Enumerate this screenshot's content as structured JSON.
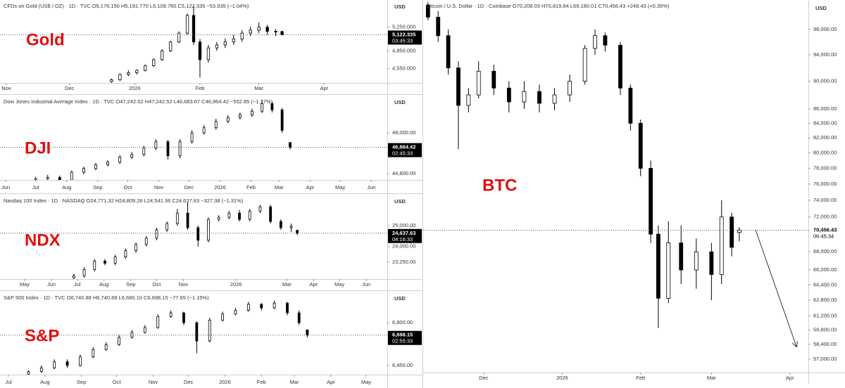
{
  "chart_data": [
    {
      "type": "candlestick",
      "title": "CFDs on Gold (US$ / OZ) · 1D · TVC  O5,176.150 H5,191.770 L5,109.760 C5,122.335 −53.935 (−1.04%)",
      "annotation": "Gold",
      "currency": "USD",
      "log": false,
      "grid": false,
      "up_color": "#ffffff",
      "down_color": "#000000",
      "x": [
        50,
        54,
        58,
        62,
        66,
        70,
        74,
        78,
        82,
        86,
        89,
        92,
        96,
        100,
        104,
        108,
        112,
        116,
        120,
        124,
        128,
        131
      ],
      "open": [
        4330,
        4360,
        4450,
        4480,
        4520,
        4600,
        4700,
        4850,
        5000,
        5150,
        5450,
        5000,
        4700,
        4900,
        4950,
        5000,
        5050,
        5150,
        5200,
        5250,
        5180,
        5176.15
      ],
      "high": [
        4380,
        4470,
        4520,
        4540,
        4620,
        4720,
        4880,
        5020,
        5180,
        5480,
        5600,
        5050,
        4950,
        5000,
        5060,
        5120,
        5200,
        5260,
        5330,
        5290,
        5220,
        5191.77
      ],
      "low": [
        4310,
        4340,
        4420,
        4450,
        4500,
        4580,
        4680,
        4830,
        4980,
        5120,
        4950,
        4400,
        4650,
        4850,
        4900,
        4950,
        5000,
        5100,
        5150,
        5120,
        5100,
        5109.76
      ],
      "close": [
        4360,
        4450,
        4480,
        4520,
        4600,
        4700,
        4850,
        5000,
        5150,
        5450,
        5000,
        4700,
        4900,
        4950,
        5000,
        5050,
        5150,
        5200,
        5250,
        5180,
        5176,
        5122.335
      ],
      "xlim": [
        -3,
        181
      ],
      "xticks": [
        {
          "value": 0,
          "label": "Nov"
        },
        {
          "value": 30,
          "label": "Dec"
        },
        {
          "value": 61,
          "label": "2026"
        },
        {
          "value": 92,
          "label": "Feb"
        },
        {
          "value": 120,
          "label": "Mar"
        },
        {
          "value": 151,
          "label": "Apr"
        }
      ],
      "ylim": [
        4307,
        5710
      ],
      "yticks": [
        {
          "value": 5250,
          "label": "5,250.000"
        },
        {
          "value": 4850,
          "label": "4,850.000"
        },
        {
          "value": 4550,
          "label": "4,550.000"
        }
      ],
      "last_price": {
        "value": 5122.335,
        "label": "5,122.335"
      },
      "countdown": "03:45:33"
    },
    {
      "type": "candlestick",
      "title": "Dow Jones Industrial Average Index · 1D · TVC  O47,242.52 H47,242.52 L46,683.67 C46,864.42 −552.85 (−1.17%)",
      "annotation": "DJI",
      "currency": "USD",
      "log": false,
      "grid": false,
      "up_color": "#ffffff",
      "down_color": "#000000",
      "x": [
        30,
        42,
        54,
        66,
        78,
        90,
        102,
        114,
        126,
        138,
        150,
        162,
        174,
        186,
        198,
        210,
        222,
        234,
        246,
        256,
        266,
        276,
        284
      ],
      "open": [
        44300,
        44400,
        44500,
        44300,
        44900,
        45200,
        45500,
        45700,
        46100,
        46300,
        46800,
        47300,
        46200,
        47300,
        48000,
        48400,
        48900,
        49200,
        49400,
        49700,
        50300,
        49800,
        47242.52
      ],
      "high": [
        44550,
        44700,
        44650,
        45050,
        45350,
        45650,
        45850,
        46250,
        46500,
        47000,
        47500,
        47450,
        47500,
        48200,
        48600,
        49100,
        49400,
        49600,
        49900,
        50600,
        50450,
        49950,
        47242.52
      ],
      "low": [
        44150,
        44250,
        44150,
        44200,
        44750,
        45050,
        45350,
        45550,
        45950,
        46150,
        46650,
        45900,
        46000,
        47150,
        47850,
        48250,
        48750,
        49050,
        49250,
        49550,
        49600,
        48000,
        46683.67
      ],
      "close": [
        44400,
        44500,
        44300,
        44900,
        45200,
        45500,
        45700,
        46100,
        46300,
        46800,
        47300,
        46200,
        47300,
        48000,
        48400,
        48900,
        49200,
        49400,
        49700,
        50300,
        49800,
        48200,
        46864.42
      ],
      "xlim": [
        -5.6,
        381
      ],
      "xticks": [
        {
          "value": 0,
          "label": "Jun"
        },
        {
          "value": 30,
          "label": "Jul"
        },
        {
          "value": 61,
          "label": "Aug"
        },
        {
          "value": 92,
          "label": "Sep"
        },
        {
          "value": 122,
          "label": "Oct"
        },
        {
          "value": 153,
          "label": "Nov"
        },
        {
          "value": 183,
          "label": "Dec"
        },
        {
          "value": 214,
          "label": "2026"
        },
        {
          "value": 245,
          "label": "Feb"
        },
        {
          "value": 273,
          "label": "Mar"
        },
        {
          "value": 304,
          "label": "Apr"
        },
        {
          "value": 334,
          "label": "May"
        },
        {
          "value": 365,
          "label": "Jun"
        }
      ],
      "ylim": [
        44303,
        50925
      ],
      "yticks": [
        {
          "value": 48000,
          "label": "48,000.00"
        },
        {
          "value": 44800,
          "label": "44,800.00"
        }
      ],
      "last_price": {
        "value": 46864.42,
        "label": "46,864.42"
      },
      "countdown": "02:45:33"
    },
    {
      "type": "candlestick",
      "title": "Nasdaq 100 Index · 1D · NASDAQ  O24,771.32 H24,809.26 L24,541.36 C24,637.63 −327.38 (−1.31%)",
      "annotation": "NDX",
      "currency": "USD",
      "log": false,
      "grid": false,
      "up_color": "#ffffff",
      "down_color": "#000000",
      "x": [
        57,
        69,
        81,
        93,
        105,
        117,
        129,
        141,
        153,
        165,
        177,
        189,
        201,
        213,
        225,
        237,
        249,
        261,
        273,
        285,
        297,
        309,
        316
      ],
      "open": [
        22500,
        22600,
        22900,
        23300,
        23200,
        23500,
        23800,
        24100,
        24400,
        24800,
        25100,
        25600,
        24900,
        24300,
        25300,
        25400,
        25600,
        25300,
        25700,
        25900,
        25200,
        24900,
        24771.32
      ],
      "high": [
        22700,
        23000,
        23400,
        23400,
        23600,
        23900,
        24200,
        24500,
        24900,
        25200,
        25800,
        26100,
        25000,
        25400,
        25500,
        25700,
        25750,
        25800,
        26000,
        26000,
        25300,
        25100,
        24809.26
      ],
      "low": [
        22400,
        22500,
        22800,
        23100,
        23100,
        23400,
        23700,
        24000,
        24300,
        24700,
        25000,
        24800,
        24000,
        24200,
        25200,
        25300,
        25200,
        25200,
        25600,
        25100,
        24800,
        24700,
        24541.36
      ],
      "close": [
        22600,
        22900,
        23300,
        23200,
        23500,
        23800,
        24100,
        24400,
        24800,
        25100,
        25600,
        24900,
        24300,
        25300,
        25400,
        25600,
        25300,
        25700,
        25900,
        25200,
        24900,
        24965,
        24637.63
      ],
      "xlim": [
        -28.6,
        420.4
      ],
      "xticks": [
        {
          "value": 0,
          "label": "May"
        },
        {
          "value": 31,
          "label": "Jun"
        },
        {
          "value": 61,
          "label": "Jul"
        },
        {
          "value": 92,
          "label": "Aug"
        },
        {
          "value": 123,
          "label": "Sep"
        },
        {
          "value": 153,
          "label": "Oct"
        },
        {
          "value": 184,
          "label": "Nov"
        },
        {
          "value": 245,
          "label": "2026"
        },
        {
          "value": 304,
          "label": "Mar"
        },
        {
          "value": 335,
          "label": "Apr"
        },
        {
          "value": 365,
          "label": "May"
        },
        {
          "value": 396,
          "label": "Jun"
        }
      ],
      "ylim": [
        22442,
        26481
      ],
      "yticks": [
        {
          "value": 25000,
          "label": "25,000.00"
        },
        {
          "value": 24000,
          "label": "24,000.00"
        },
        {
          "value": 23250,
          "label": "23,250.00"
        }
      ],
      "last_price": {
        "value": 24637.63,
        "label": "24,637.63"
      },
      "countdown": "04:16:33"
    },
    {
      "type": "candlestick",
      "title": "S&P 500 Index · 1D · TVC  O6,740.88 H6,740.88 L6,680.10 C6,698.15 −77.65 (−1.15%)",
      "annotation": "S&P",
      "currency": "USD",
      "log": false,
      "grid": false,
      "up_color": "#ffffff",
      "down_color": "#000000",
      "x": [
        17,
        28,
        39,
        50,
        61,
        72,
        83,
        94,
        105,
        116,
        127,
        138,
        149,
        160,
        171,
        182,
        193,
        204,
        215,
        226,
        237,
        247,
        254
      ],
      "open": [
        6380,
        6400,
        6430,
        6480,
        6450,
        6520,
        6580,
        6620,
        6680,
        6720,
        6760,
        6850,
        6880,
        6800,
        6650,
        6820,
        6870,
        6900,
        6950,
        6920,
        6960,
        6880,
        6740.88
      ],
      "high": [
        6410,
        6450,
        6500,
        6500,
        6540,
        6600,
        6640,
        6700,
        6740,
        6780,
        6870,
        6900,
        6890,
        6810,
        6840,
        6890,
        6920,
        6970,
        6960,
        6980,
        6970,
        6900,
        6740.88
      ],
      "low": [
        6370,
        6390,
        6420,
        6430,
        6440,
        6510,
        6570,
        6610,
        6670,
        6710,
        6750,
        6840,
        6780,
        6550,
        6640,
        6810,
        6860,
        6890,
        6900,
        6910,
        6860,
        6780,
        6680.1
      ],
      "close": [
        6400,
        6430,
        6480,
        6450,
        6520,
        6580,
        6620,
        6680,
        6720,
        6760,
        6850,
        6880,
        6800,
        6650,
        6820,
        6870,
        6900,
        6950,
        6920,
        6960,
        6880,
        6800,
        6698.15
      ],
      "xlim": [
        -7.2,
        322
      ],
      "xticks": [
        {
          "value": 0,
          "label": "Jul"
        },
        {
          "value": 31,
          "label": "Aug"
        },
        {
          "value": 62,
          "label": "Sep"
        },
        {
          "value": 92,
          "label": "Oct"
        },
        {
          "value": 123,
          "label": "Nov"
        },
        {
          "value": 153,
          "label": "Dec"
        },
        {
          "value": 184,
          "label": "2026"
        },
        {
          "value": 215,
          "label": "Feb"
        },
        {
          "value": 243,
          "label": "Mar"
        },
        {
          "value": 274,
          "label": "Apr"
        },
        {
          "value": 304,
          "label": "May"
        }
      ],
      "ylim": [
        6375,
        7053
      ],
      "yticks": [
        {
          "value": 6800,
          "label": "6,800.00"
        },
        {
          "value": 6450,
          "label": "6,450.00"
        }
      ],
      "last_price": {
        "value": 6698.15,
        "label": "6,698.15"
      },
      "countdown": "02:55:33"
    },
    {
      "type": "candlestick",
      "title": "Bitcoin / U.S. Dollar · 1D · Coinbase  O70,208.03 H70,819.84 L69,180.01 C70,456.43 +248.43 (+0.35%)",
      "annotation": "BTC",
      "currency": "USD",
      "log": true,
      "grid": false,
      "up_color": "#ffffff",
      "down_color": "#000000",
      "x": [
        8,
        12,
        16,
        20,
        24,
        28,
        34,
        40,
        46,
        52,
        58,
        64,
        70,
        74,
        78,
        84,
        88,
        92,
        96,
        99,
        103,
        108,
        114,
        120,
        124,
        128,
        131
      ],
      "open": [
        102000,
        100000,
        97000,
        92000,
        86500,
        88000,
        91500,
        89000,
        87000,
        88500,
        86800,
        88000,
        90000,
        95000,
        97000,
        95500,
        89000,
        84000,
        78000,
        70000,
        63000,
        69000,
        66000,
        68000,
        65500,
        72000,
        70208.03
      ],
      "high": [
        102500,
        101000,
        98000,
        93000,
        89000,
        93000,
        92500,
        90000,
        90000,
        89500,
        89000,
        91000,
        95500,
        98000,
        97500,
        96000,
        89500,
        84500,
        79000,
        71000,
        71500,
        71000,
        69500,
        69000,
        74000,
        72500,
        70819.84
      ],
      "low": [
        99500,
        96000,
        91000,
        80500,
        85500,
        87500,
        88000,
        85500,
        86000,
        85500,
        85800,
        87000,
        89500,
        94000,
        94500,
        88000,
        83000,
        77000,
        69000,
        60000,
        62500,
        64500,
        64000,
        62800,
        64500,
        67500,
        69180.01
      ],
      "close": [
        100000,
        97000,
        92000,
        86500,
        88000,
        91500,
        89000,
        87000,
        88500,
        86800,
        88000,
        90000,
        95000,
        97000,
        95500,
        89000,
        84000,
        78000,
        70000,
        63000,
        69000,
        66000,
        68000,
        65500,
        72000,
        68500,
        70456.43
      ],
      "xlim": [
        6.1,
        158.3
      ],
      "xticks": [
        {
          "value": 30,
          "label": "Dec"
        },
        {
          "value": 61,
          "label": "2026"
        },
        {
          "value": 92,
          "label": "Feb"
        },
        {
          "value": 120,
          "label": "Mar"
        },
        {
          "value": 151,
          "label": "Apr"
        }
      ],
      "ylim": [
        55760,
        102860
      ],
      "yticks": [
        {
          "value": 98000,
          "label": "98,000.00"
        },
        {
          "value": 94000,
          "label": "94,000.00"
        },
        {
          "value": 90000,
          "label": "90,000.00"
        },
        {
          "value": 86000,
          "label": "86,000.00"
        },
        {
          "value": 84000,
          "label": "84,000.00"
        },
        {
          "value": 82000,
          "label": "82,000.00"
        },
        {
          "value": 80000,
          "label": "80,000.00"
        },
        {
          "value": 78000,
          "label": "78,000.00"
        },
        {
          "value": 76000,
          "label": "76,000.00"
        },
        {
          "value": 74000,
          "label": "74,000.00"
        },
        {
          "value": 72000,
          "label": "72,000.00"
        },
        {
          "value": 68000,
          "label": "68,000.00"
        },
        {
          "value": 66000,
          "label": "66,000.00"
        },
        {
          "value": 64400,
          "label": "64,400.00"
        },
        {
          "value": 62800,
          "label": "62,800.00"
        },
        {
          "value": 61200,
          "label": "61,200.00"
        },
        {
          "value": 59800,
          "label": "59,800.00"
        },
        {
          "value": 58400,
          "label": "58,400.00"
        },
        {
          "value": 57000,
          "label": "57,000.00"
        }
      ],
      "last_price": {
        "value": 70456.43,
        "label": "70,456.43"
      },
      "countdown": "06:45:34"
    }
  ]
}
